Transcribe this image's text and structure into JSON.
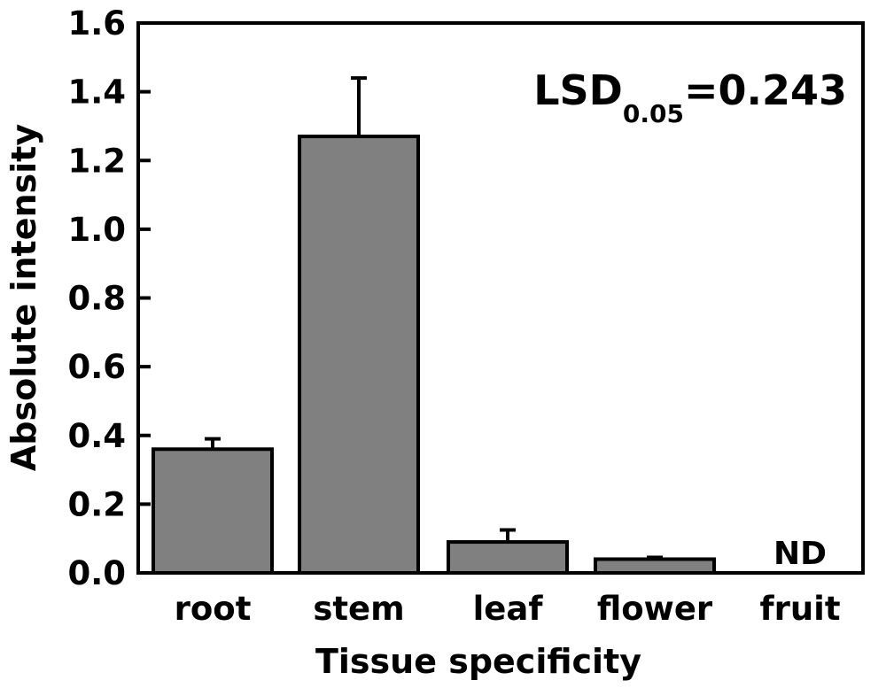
{
  "chart_data": {
    "type": "bar",
    "title": "",
    "xlabel": "Tissue specificity",
    "ylabel": "Absolute intensity",
    "ylim": [
      0,
      1.6
    ],
    "yticks": [
      "0.0",
      "0.2",
      "0.4",
      "0.6",
      "0.8",
      "1.0",
      "1.2",
      "1.4",
      "1.6"
    ],
    "categories": [
      "root",
      "stem",
      "leaf",
      "flower",
      "fruit"
    ],
    "values": [
      0.36,
      1.27,
      0.09,
      0.04,
      null
    ],
    "errors": [
      0.03,
      0.17,
      0.035,
      0.005,
      null
    ],
    "missing_label": "ND",
    "annotation": {
      "prefix": "LSD",
      "subscript": "0.05",
      "suffix": "=0.243"
    },
    "grid": false,
    "legend": "none",
    "bar_color": "#808080",
    "edge_color": "#000000"
  }
}
